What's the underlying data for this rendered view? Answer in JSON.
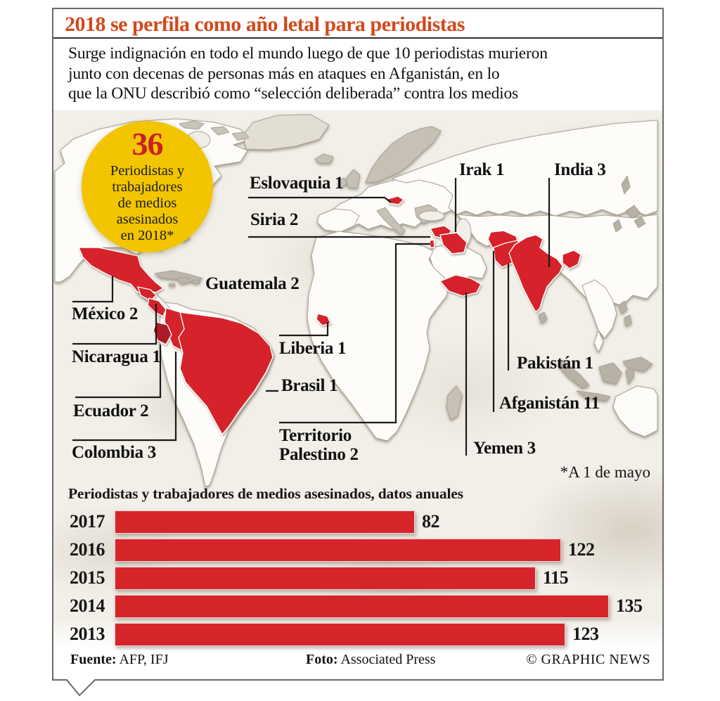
{
  "header": {
    "title": "2018 se perfila como año letal para periodistas",
    "intro_lines": [
      "Surge indignación en todo el mundo luego de que 10 periodistas murieron",
      "junto con decenas de personas más en ataques en Afganistán, en lo",
      "que la ONU describió como “selección deliberada” contra los medios"
    ]
  },
  "badge": {
    "value": "36",
    "label": "Periodistas y\ntrabajadores\nde medios\nasesinados\nen 2018*"
  },
  "map": {
    "labels": [
      {
        "id": "eslovaquia",
        "text": "Eslovaquia 1"
      },
      {
        "id": "siria",
        "text": "Siria 2"
      },
      {
        "id": "guatemala",
        "text": "Guatemala 2"
      },
      {
        "id": "mexico",
        "text": "México 2"
      },
      {
        "id": "nicaragua",
        "text": "Nicaragua 1"
      },
      {
        "id": "ecuador",
        "text": "Ecuador 2"
      },
      {
        "id": "colombia",
        "text": "Colombia 3"
      },
      {
        "id": "liberia",
        "text": "Liberia 1"
      },
      {
        "id": "brasil",
        "text": "Brasil 1"
      },
      {
        "id": "territorio-palestino",
        "text": "Territorio\nPalestino 2"
      },
      {
        "id": "irak",
        "text": "Irak 1"
      },
      {
        "id": "india",
        "text": "India 3"
      },
      {
        "id": "pakistan",
        "text": "Pakistán 1"
      },
      {
        "id": "afganistan",
        "text": "Afganistán 11"
      },
      {
        "id": "yemen",
        "text": "Yemen 3"
      }
    ]
  },
  "footnote": "*A 1 de mayo",
  "chart_data": {
    "type": "bar",
    "orientation": "horizontal",
    "title": "Periodistas y trabajadores de medios asesinados, datos anuales",
    "categories": [
      "2017",
      "2016",
      "2015",
      "2014",
      "2013"
    ],
    "values": [
      82,
      122,
      115,
      135,
      123
    ],
    "xlim": [
      0,
      135
    ],
    "bar_color": "#d6242b",
    "value_labels_shown": true,
    "order_note": "rows listed top to bottom"
  },
  "footer": {
    "source_label": "Fuente:",
    "source_value": " AFP, IFJ",
    "photo_label": "Foto:",
    "photo_value": " Associated Press",
    "copyright": "© GRAPHIC NEWS"
  },
  "colors": {
    "accent_title": "#d3491c",
    "highlight_red": "#d6242b",
    "badge_yellow": "#f2c500",
    "badge_number_red": "#cc2026",
    "paper": "#f2efe9",
    "frame_border": "#6a6a6a"
  }
}
